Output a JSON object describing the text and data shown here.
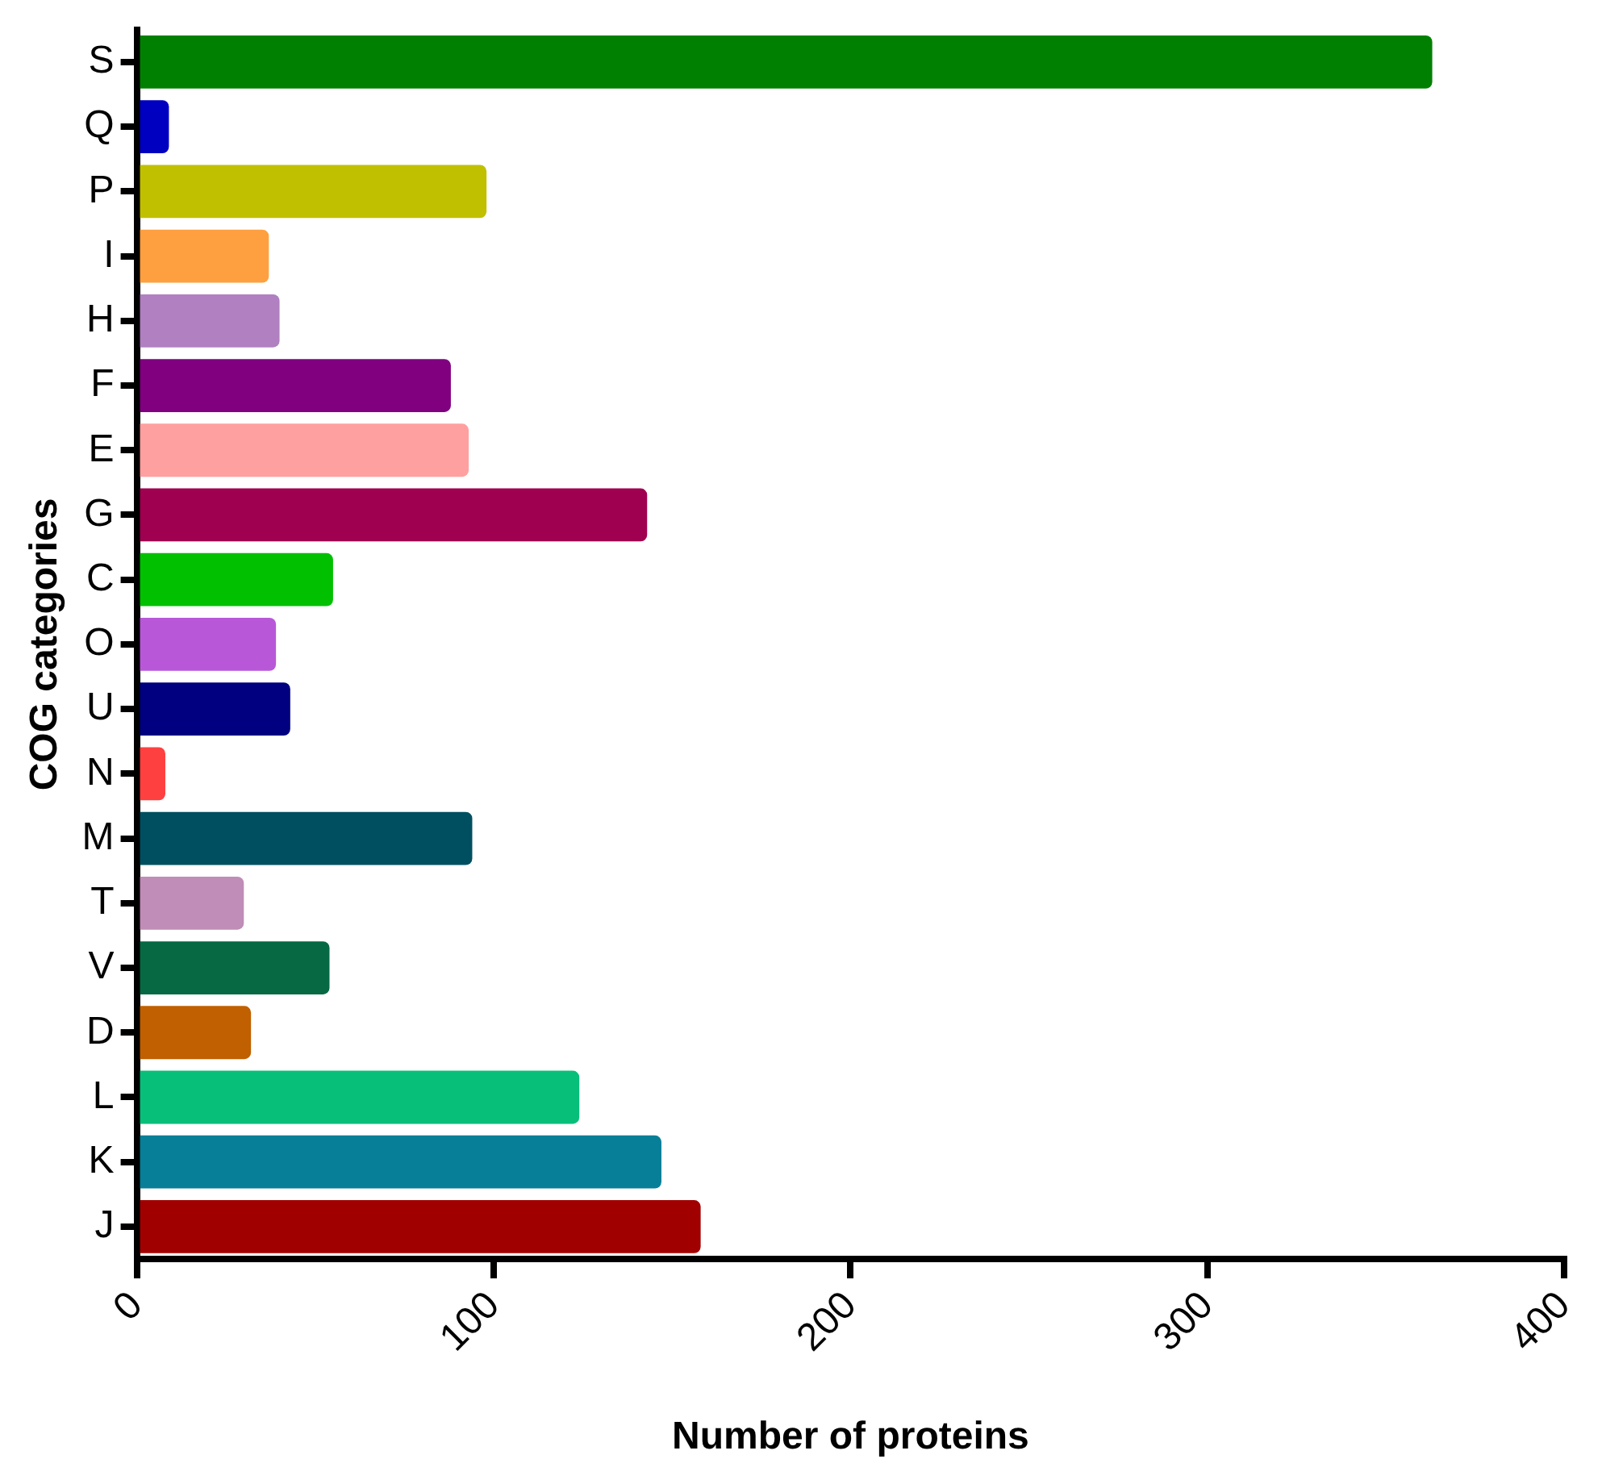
{
  "chart_data": {
    "type": "bar",
    "orientation": "horizontal",
    "xlabel": "Number of proteins",
    "ylabel": "COG categories",
    "categories": [
      "S",
      "Q",
      "P",
      "I",
      "H",
      "F",
      "E",
      "G",
      "C",
      "O",
      "U",
      "N",
      "M",
      "T",
      "V",
      "D",
      "L",
      "K",
      "J"
    ],
    "values": [
      363,
      9,
      98,
      37,
      40,
      88,
      93,
      143,
      55,
      39,
      43,
      8,
      94,
      30,
      54,
      32,
      124,
      147,
      158
    ],
    "colors": [
      "#008000",
      "#0000c0",
      "#c0c000",
      "#ffa040",
      "#b080c0",
      "#800080",
      "#ffa0a0",
      "#a00050",
      "#00c000",
      "#b858d8",
      "#000080",
      "#ff4040",
      "#004f60",
      "#c08cb8",
      "#066944",
      "#c06000",
      "#08bf7a",
      "#087f98",
      "#a00000"
    ],
    "xlim": [
      0,
      400
    ],
    "xticks": [
      0,
      100,
      200,
      300,
      400
    ],
    "grid": false,
    "legend": false
  }
}
